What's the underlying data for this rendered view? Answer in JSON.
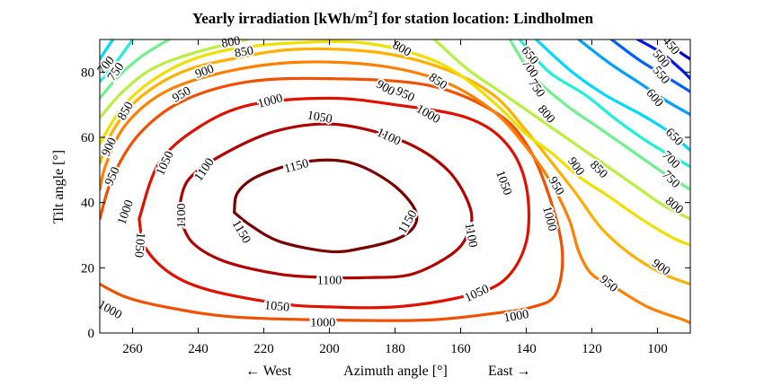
{
  "chart_data": {
    "type": "contour",
    "title": "Yearly irradiation [kWh/m",
    "title_sup": "2",
    "title_tail": "] for station location: Lindholmen",
    "xlabel": "Azimuth angle [°]",
    "xlabel_left": "← West",
    "xlabel_right": "East →",
    "ylabel": "Tilt angle [°]",
    "x_range": [
      270,
      90
    ],
    "x_reversed": true,
    "ylim": [
      0,
      90
    ],
    "x_ticks": [
      260,
      240,
      220,
      200,
      180,
      160,
      140,
      120,
      100
    ],
    "y_ticks": [
      0,
      20,
      40,
      60,
      80
    ],
    "grid": false,
    "colormap": "jet",
    "color_levels": [
      {
        "level": 450,
        "color": "#0000c8"
      },
      {
        "level": 500,
        "color": "#0018e8"
      },
      {
        "level": 550,
        "color": "#0060ff"
      },
      {
        "level": 600,
        "color": "#00a0ff"
      },
      {
        "level": 650,
        "color": "#00d8ff"
      },
      {
        "level": 700,
        "color": "#20f0d8"
      },
      {
        "level": 750,
        "color": "#70f090"
      },
      {
        "level": 800,
        "color": "#b8f040"
      },
      {
        "level": 850,
        "color": "#f0e000"
      },
      {
        "level": 900,
        "color": "#ffb000"
      },
      {
        "level": 950,
        "color": "#ff8000"
      },
      {
        "level": 1000,
        "color": "#f05000"
      },
      {
        "level": 1050,
        "color": "#e01000"
      },
      {
        "level": 1100,
        "color": "#b00000"
      },
      {
        "level": 1150,
        "color": "#7a0000"
      }
    ],
    "contours": [
      {
        "level": 1150,
        "points": [
          [
            229,
            37
          ],
          [
            224,
            33
          ],
          [
            215,
            28
          ],
          [
            200,
            25
          ],
          [
            190,
            26
          ],
          [
            179,
            29
          ],
          [
            174,
            33
          ],
          [
            174,
            38
          ],
          [
            180,
            45
          ],
          [
            190,
            51
          ],
          [
            199,
            53
          ],
          [
            210,
            52
          ],
          [
            222,
            48
          ],
          [
            228,
            43
          ],
          [
            229,
            37
          ]
        ]
      },
      {
        "level": 1100,
        "points": [
          [
            246,
            37
          ],
          [
            242,
            28
          ],
          [
            232,
            22
          ],
          [
            215,
            18
          ],
          [
            200,
            17
          ],
          [
            188,
            17
          ],
          [
            175,
            18
          ],
          [
            163,
            24
          ],
          [
            158,
            30
          ],
          [
            157,
            38
          ],
          [
            164,
            50
          ],
          [
            178,
            59
          ],
          [
            198,
            64
          ],
          [
            216,
            62
          ],
          [
            232,
            55
          ],
          [
            243,
            47
          ],
          [
            246,
            37
          ]
        ]
      },
      {
        "level": 1050,
        "points": [
          [
            258,
            35
          ],
          [
            256,
            26
          ],
          [
            248,
            18
          ],
          [
            236,
            13
          ],
          [
            215,
            9
          ],
          [
            200,
            8
          ],
          [
            180,
            8
          ],
          [
            160,
            11
          ],
          [
            147,
            16
          ],
          [
            140,
            28
          ],
          [
            140,
            45
          ],
          [
            146,
            58
          ],
          [
            158,
            66
          ],
          [
            180,
            70
          ],
          [
            200,
            72
          ],
          [
            224,
            70
          ],
          [
            240,
            63
          ],
          [
            252,
            52
          ],
          [
            258,
            35
          ]
        ]
      },
      {
        "level": 1000,
        "points": [
          [
            270,
            15
          ],
          [
            262,
            11
          ],
          [
            250,
            8
          ],
          [
            230,
            5
          ],
          [
            200,
            4
          ],
          [
            170,
            4
          ],
          [
            150,
            6
          ],
          [
            138,
            8
          ],
          [
            131,
            12
          ],
          [
            129,
            25
          ],
          [
            133,
            42
          ],
          [
            140,
            58
          ],
          [
            150,
            68
          ],
          [
            170,
            76
          ],
          [
            200,
            78
          ],
          [
            225,
            77
          ],
          [
            245,
            71
          ],
          [
            258,
            61
          ],
          [
            266,
            48
          ],
          [
            270,
            35
          ]
        ]
      },
      {
        "level": 950,
        "points": [
          [
            270,
            44
          ],
          [
            268,
            52
          ],
          [
            262,
            64
          ],
          [
            250,
            74
          ],
          [
            232,
            80
          ],
          [
            210,
            83
          ],
          [
            185,
            82
          ],
          [
            165,
            77
          ],
          [
            150,
            68
          ],
          [
            140,
            57
          ],
          [
            133,
            47
          ],
          [
            127,
            35
          ],
          [
            124,
            25
          ],
          [
            120,
            18
          ],
          [
            113,
            14
          ],
          [
            103,
            8
          ],
          [
            92,
            4
          ],
          [
            90,
            3
          ]
        ]
      },
      {
        "level": 900,
        "points": [
          [
            270,
            52
          ],
          [
            266,
            62
          ],
          [
            258,
            72
          ],
          [
            245,
            80
          ],
          [
            230,
            84
          ],
          [
            210,
            87
          ],
          [
            185,
            86
          ],
          [
            165,
            81
          ],
          [
            150,
            73
          ],
          [
            140,
            62
          ],
          [
            132,
            52
          ],
          [
            125,
            43
          ],
          [
            117,
            32
          ],
          [
            108,
            24
          ],
          [
            98,
            18
          ],
          [
            90,
            15
          ]
        ]
      },
      {
        "level": 850,
        "points": [
          [
            270,
            58
          ],
          [
            264,
            68
          ],
          [
            256,
            76
          ],
          [
            244,
            83
          ],
          [
            230,
            87
          ],
          [
            210,
            89
          ],
          [
            190,
            89
          ],
          [
            172,
            85
          ],
          [
            160,
            79
          ],
          [
            148,
            69
          ],
          [
            140,
            61
          ],
          [
            132,
            55
          ],
          [
            124,
            48
          ],
          [
            115,
            42
          ],
          [
            105,
            35
          ],
          [
            95,
            29
          ],
          [
            90,
            27
          ]
        ]
      },
      {
        "level": 800,
        "points": [
          [
            270,
            66
          ],
          [
            263,
            74
          ],
          [
            254,
            81
          ],
          [
            241,
            86
          ],
          [
            225,
            90
          ]
        ]
      },
      {
        "level": 800,
        "points": [
          [
            168,
            90
          ],
          [
            158,
            81
          ],
          [
            148,
            74
          ],
          [
            138,
            67
          ],
          [
            128,
            60
          ],
          [
            118,
            53
          ],
          [
            108,
            46
          ],
          [
            98,
            39
          ],
          [
            90,
            35
          ]
        ]
      },
      {
        "level": 750,
        "points": [
          [
            270,
            72
          ],
          [
            264,
            79
          ],
          [
            257,
            85
          ],
          [
            249,
            90
          ]
        ]
      },
      {
        "level": 750,
        "points": [
          [
            145,
            90
          ],
          [
            138,
            79
          ],
          [
            128,
            70
          ],
          [
            118,
            63
          ],
          [
            108,
            56
          ],
          [
            98,
            49
          ],
          [
            90,
            44
          ]
        ]
      },
      {
        "level": 700,
        "points": [
          [
            270,
            77
          ],
          [
            265,
            83
          ],
          [
            260,
            90
          ]
        ]
      },
      {
        "level": 700,
        "points": [
          [
            142,
            90
          ],
          [
            133,
            80
          ],
          [
            122,
            73
          ],
          [
            112,
            65
          ],
          [
            102,
            58
          ],
          [
            90,
            51
          ]
        ]
      },
      {
        "level": 650,
        "points": [
          [
            270,
            84
          ],
          [
            266,
            90
          ]
        ]
      },
      {
        "level": 650,
        "points": [
          [
            137,
            90
          ],
          [
            126,
            80
          ],
          [
            116,
            73
          ],
          [
            105,
            67
          ],
          [
            97,
            62
          ],
          [
            90,
            56
          ]
        ]
      },
      {
        "level": 600,
        "points": [
          [
            124,
            90
          ],
          [
            115,
            83
          ],
          [
            106,
            77
          ],
          [
            97,
            71
          ],
          [
            90,
            67
          ]
        ]
      },
      {
        "level": 550,
        "points": [
          [
            114,
            90
          ],
          [
            106,
            84
          ],
          [
            98,
            79
          ],
          [
            90,
            74
          ]
        ]
      },
      {
        "level": 500,
        "points": [
          [
            106,
            90
          ],
          [
            99,
            86
          ],
          [
            93,
            81
          ],
          [
            90,
            78
          ]
        ]
      },
      {
        "level": 450,
        "points": [
          [
            98,
            90
          ],
          [
            93,
            86
          ],
          [
            90,
            84
          ]
        ]
      }
    ],
    "contour_labels": [
      {
        "text": "1150",
        "x": 210,
        "y": 51,
        "rotate": -15
      },
      {
        "text": "1150",
        "x": 176,
        "y": 34,
        "rotate": -60
      },
      {
        "text": "1150",
        "x": 227,
        "y": 31,
        "rotate": 60
      },
      {
        "text": "1100",
        "x": 200,
        "y": 16,
        "rotate": 0
      },
      {
        "text": "1100",
        "x": 245,
        "y": 36,
        "rotate": -90
      },
      {
        "text": "1100",
        "x": 157,
        "y": 30,
        "rotate": 80
      },
      {
        "text": "1100",
        "x": 238,
        "y": 50,
        "rotate": -55
      },
      {
        "text": "1100",
        "x": 182,
        "y": 60,
        "rotate": 25
      },
      {
        "text": "1050",
        "x": 203,
        "y": 66,
        "rotate": 10
      },
      {
        "text": "1050",
        "x": 250,
        "y": 52,
        "rotate": -65
      },
      {
        "text": "1050",
        "x": 258,
        "y": 27,
        "rotate": 95
      },
      {
        "text": "1050",
        "x": 216,
        "y": 8,
        "rotate": 5
      },
      {
        "text": "1050",
        "x": 155,
        "y": 12,
        "rotate": -25
      },
      {
        "text": "1050",
        "x": 147,
        "y": 46,
        "rotate": 70
      },
      {
        "text": "1000",
        "x": 262,
        "y": 37,
        "rotate": -70
      },
      {
        "text": "1000",
        "x": 267,
        "y": 7,
        "rotate": 30
      },
      {
        "text": "1000",
        "x": 202,
        "y": 3,
        "rotate": 0
      },
      {
        "text": "1000",
        "x": 143,
        "y": 5,
        "rotate": -10
      },
      {
        "text": "1000",
        "x": 133,
        "y": 35,
        "rotate": 75
      },
      {
        "text": "1000",
        "x": 170,
        "y": 67,
        "rotate": 30
      },
      {
        "text": "1000",
        "x": 218,
        "y": 71,
        "rotate": -15
      },
      {
        "text": "950",
        "x": 266,
        "y": 48,
        "rotate": -65
      },
      {
        "text": "950",
        "x": 245,
        "y": 73,
        "rotate": -30
      },
      {
        "text": "950",
        "x": 177,
        "y": 73,
        "rotate": 25
      },
      {
        "text": "950",
        "x": 131,
        "y": 45,
        "rotate": 60
      },
      {
        "text": "950",
        "x": 115,
        "y": 15,
        "rotate": 40
      },
      {
        "text": "900",
        "x": 267,
        "y": 57,
        "rotate": -65
      },
      {
        "text": "900",
        "x": 238,
        "y": 80,
        "rotate": -20
      },
      {
        "text": "900",
        "x": 183,
        "y": 75,
        "rotate": 30
      },
      {
        "text": "900",
        "x": 125,
        "y": 51,
        "rotate": 55
      },
      {
        "text": "900",
        "x": 99,
        "y": 20,
        "rotate": 35
      },
      {
        "text": "850",
        "x": 262,
        "y": 68,
        "rotate": -60
      },
      {
        "text": "850",
        "x": 226,
        "y": 86,
        "rotate": -10
      },
      {
        "text": "850",
        "x": 167,
        "y": 77,
        "rotate": 35
      },
      {
        "text": "850",
        "x": 118,
        "y": 50,
        "rotate": 45
      },
      {
        "text": "800",
        "x": 230,
        "y": 89,
        "rotate": -10
      },
      {
        "text": "800",
        "x": 178,
        "y": 87,
        "rotate": 30
      },
      {
        "text": "800",
        "x": 134,
        "y": 67,
        "rotate": 50
      },
      {
        "text": "800",
        "x": 95,
        "y": 39,
        "rotate": 40
      },
      {
        "text": "750",
        "x": 265,
        "y": 80,
        "rotate": -55
      },
      {
        "text": "750",
        "x": 137,
        "y": 75,
        "rotate": 55
      },
      {
        "text": "750",
        "x": 96,
        "y": 47,
        "rotate": 45
      },
      {
        "text": "700",
        "x": 268,
        "y": 82,
        "rotate": -50
      },
      {
        "text": "700",
        "x": 139,
        "y": 81,
        "rotate": 55
      },
      {
        "text": "700",
        "x": 96,
        "y": 53,
        "rotate": 45
      },
      {
        "text": "650",
        "x": 139,
        "y": 85,
        "rotate": 50
      },
      {
        "text": "650",
        "x": 95,
        "y": 60,
        "rotate": 45
      },
      {
        "text": "600",
        "x": 101,
        "y": 72,
        "rotate": 50
      },
      {
        "text": "550",
        "x": 99,
        "y": 79,
        "rotate": 50
      },
      {
        "text": "500",
        "x": 99,
        "y": 84,
        "rotate": 50
      },
      {
        "text": "450",
        "x": 96,
        "y": 88,
        "rotate": 50
      }
    ]
  }
}
